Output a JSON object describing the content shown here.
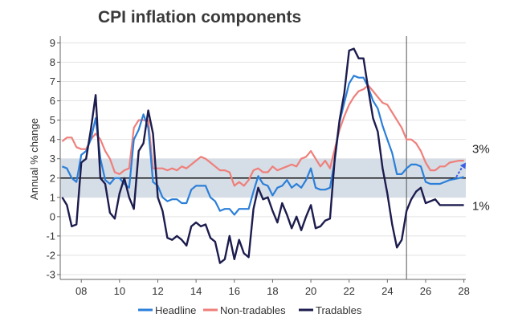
{
  "chart_data": {
    "type": "line",
    "title": "CPI inflation components",
    "ylabel": "Annual % change",
    "xlabel": "",
    "xlim": [
      2006.9,
      2028.1
    ],
    "ylim": [
      -3.25,
      9.35
    ],
    "x_ticks": [
      2008,
      2010,
      2012,
      2014,
      2016,
      2018,
      2020,
      2022,
      2024,
      2026,
      2028
    ],
    "x_tick_labels": [
      "08",
      "10",
      "12",
      "14",
      "16",
      "18",
      "20",
      "22",
      "24",
      "26",
      "28"
    ],
    "y_ticks": [
      -3,
      -2,
      -1,
      0,
      1,
      2,
      3,
      4,
      5,
      6,
      7,
      8,
      9
    ],
    "target_band": [
      1,
      3
    ],
    "target_line": 2,
    "forecast_start": 2025.0,
    "annotations": [
      {
        "text": "3%",
        "x": 2028.1,
        "y": 3.5
      },
      {
        "text": "1%",
        "x": 2028.1,
        "y": 0.55
      }
    ],
    "forecast_arrow": {
      "from": [
        2027.6,
        2.05
      ],
      "to": [
        2028.1,
        2.8
      ]
    },
    "colors": {
      "headline": "#2b7fd9",
      "non_tradables": "#ef7f7a",
      "tradables": "#1c1c4e",
      "band": "#d5dde6",
      "arrow": "#3a5fe0"
    },
    "series": [
      {
        "name": "Headline",
        "x": [
          2007.0,
          2007.25,
          2007.5,
          2007.75,
          2008.0,
          2008.25,
          2008.5,
          2008.75,
          2009.0,
          2009.25,
          2009.5,
          2009.75,
          2010.0,
          2010.25,
          2010.5,
          2010.75,
          2011.0,
          2011.25,
          2011.5,
          2011.75,
          2012.0,
          2012.25,
          2012.5,
          2012.75,
          2013.0,
          2013.25,
          2013.5,
          2013.75,
          2014.0,
          2014.25,
          2014.5,
          2014.75,
          2015.0,
          2015.25,
          2015.5,
          2015.75,
          2016.0,
          2016.25,
          2016.5,
          2016.75,
          2017.0,
          2017.25,
          2017.5,
          2017.75,
          2018.0,
          2018.25,
          2018.5,
          2018.75,
          2019.0,
          2019.25,
          2019.5,
          2019.75,
          2020.0,
          2020.25,
          2020.5,
          2020.75,
          2021.0,
          2021.25,
          2021.5,
          2021.75,
          2022.0,
          2022.25,
          2022.5,
          2022.75,
          2023.0,
          2023.25,
          2023.5,
          2023.75,
          2024.0,
          2024.25,
          2024.5,
          2024.75,
          2025.0,
          2025.25,
          2025.5,
          2025.75,
          2026.0,
          2026.25,
          2026.5,
          2026.75,
          2027.0,
          2027.25,
          2027.5,
          2027.75,
          2028.0
        ],
        "values": [
          2.6,
          2.5,
          2.0,
          1.8,
          3.2,
          3.4,
          4.0,
          5.1,
          3.0,
          1.9,
          1.7,
          2.0,
          2.0,
          1.7,
          1.5,
          4.0,
          4.5,
          5.3,
          4.6,
          1.8,
          1.6,
          1.0,
          0.8,
          0.9,
          0.9,
          0.7,
          0.7,
          1.4,
          1.6,
          1.6,
          1.6,
          1.0,
          0.8,
          0.3,
          0.4,
          0.4,
          0.1,
          0.4,
          0.4,
          0.4,
          1.3,
          2.1,
          1.7,
          1.6,
          1.1,
          1.5,
          1.6,
          1.9,
          1.5,
          1.7,
          1.5,
          1.9,
          2.5,
          1.5,
          1.4,
          1.4,
          1.5,
          2.9,
          4.9,
          5.9,
          6.9,
          7.3,
          7.2,
          7.2,
          6.7,
          6.0,
          5.6,
          4.7,
          4.0,
          3.3,
          2.2,
          2.2,
          2.5,
          2.7,
          2.7,
          2.6,
          1.8,
          1.7,
          1.7,
          1.7,
          1.8,
          1.9,
          1.95,
          2.0,
          2.05
        ]
      },
      {
        "name": "Non-tradables",
        "x": [
          2007.0,
          2007.25,
          2007.5,
          2007.75,
          2008.0,
          2008.25,
          2008.5,
          2008.75,
          2009.0,
          2009.25,
          2009.5,
          2009.75,
          2010.0,
          2010.25,
          2010.5,
          2010.75,
          2011.0,
          2011.25,
          2011.5,
          2011.75,
          2012.0,
          2012.25,
          2012.5,
          2012.75,
          2013.0,
          2013.25,
          2013.5,
          2013.75,
          2014.0,
          2014.25,
          2014.5,
          2014.75,
          2015.0,
          2015.25,
          2015.5,
          2015.75,
          2016.0,
          2016.25,
          2016.5,
          2016.75,
          2017.0,
          2017.25,
          2017.5,
          2017.75,
          2018.0,
          2018.25,
          2018.5,
          2018.75,
          2019.0,
          2019.25,
          2019.5,
          2019.75,
          2020.0,
          2020.25,
          2020.5,
          2020.75,
          2021.0,
          2021.25,
          2021.5,
          2021.75,
          2022.0,
          2022.25,
          2022.5,
          2022.75,
          2023.0,
          2023.25,
          2023.5,
          2023.75,
          2024.0,
          2024.25,
          2024.5,
          2024.75,
          2025.0,
          2025.25,
          2025.5,
          2025.75,
          2026.0,
          2026.25,
          2026.5,
          2026.75,
          2027.0,
          2027.25,
          2027.5,
          2027.75,
          2028.0
        ],
        "values": [
          3.9,
          4.1,
          4.1,
          3.6,
          3.5,
          3.5,
          4.0,
          4.3,
          4.0,
          3.4,
          3.0,
          2.3,
          2.2,
          2.4,
          2.5,
          4.6,
          5.0,
          5.0,
          5.0,
          2.5,
          2.5,
          2.5,
          2.4,
          2.5,
          2.4,
          2.6,
          2.5,
          2.7,
          2.9,
          3.1,
          3.0,
          2.8,
          2.6,
          2.4,
          2.4,
          2.3,
          1.6,
          1.8,
          1.6,
          1.9,
          2.4,
          2.5,
          2.3,
          2.3,
          2.6,
          2.4,
          2.5,
          2.6,
          2.7,
          2.6,
          3.0,
          3.1,
          3.4,
          3.0,
          2.6,
          2.9,
          2.5,
          3.5,
          4.5,
          5.2,
          5.8,
          6.2,
          6.5,
          6.6,
          6.8,
          6.5,
          6.2,
          5.9,
          5.8,
          5.4,
          5.0,
          4.6,
          4.0,
          4.0,
          3.8,
          3.4,
          2.8,
          2.4,
          2.4,
          2.6,
          2.6,
          2.8,
          2.85,
          2.9,
          2.9
        ]
      },
      {
        "name": "Tradables",
        "x": [
          2007.0,
          2007.25,
          2007.5,
          2007.75,
          2008.0,
          2008.25,
          2008.5,
          2008.75,
          2009.0,
          2009.25,
          2009.5,
          2009.75,
          2010.0,
          2010.25,
          2010.5,
          2010.75,
          2011.0,
          2011.25,
          2011.5,
          2011.75,
          2012.0,
          2012.25,
          2012.5,
          2012.75,
          2013.0,
          2013.25,
          2013.5,
          2013.75,
          2014.0,
          2014.25,
          2014.5,
          2014.75,
          2015.0,
          2015.25,
          2015.5,
          2015.75,
          2016.0,
          2016.25,
          2016.5,
          2016.75,
          2017.0,
          2017.25,
          2017.5,
          2017.75,
          2018.0,
          2018.25,
          2018.5,
          2018.75,
          2019.0,
          2019.25,
          2019.5,
          2019.75,
          2020.0,
          2020.25,
          2020.5,
          2020.75,
          2021.0,
          2021.25,
          2021.5,
          2021.75,
          2022.0,
          2022.25,
          2022.5,
          2022.75,
          2023.0,
          2023.25,
          2023.5,
          2023.75,
          2024.0,
          2024.25,
          2024.5,
          2024.75,
          2025.0,
          2025.25,
          2025.5,
          2025.75,
          2026.0,
          2026.25,
          2026.5,
          2026.75,
          2027.0,
          2027.25,
          2027.5,
          2027.75,
          2028.0
        ],
        "values": [
          1.0,
          0.6,
          -0.5,
          -0.4,
          2.8,
          3.0,
          4.5,
          6.3,
          2.0,
          1.7,
          0.2,
          -0.1,
          1.2,
          2.0,
          1.0,
          0.4,
          3.4,
          3.8,
          5.5,
          4.3,
          1.0,
          0.3,
          -1.1,
          -1.2,
          -1.0,
          -1.2,
          -1.5,
          -0.5,
          -0.3,
          -0.5,
          -0.4,
          -1.1,
          -1.3,
          -2.4,
          -2.2,
          -1.0,
          -2.2,
          -1.2,
          -1.9,
          -2.1,
          0.4,
          1.5,
          0.9,
          1.0,
          0.3,
          -0.3,
          0.7,
          0.1,
          -0.6,
          0.0,
          -0.7,
          0.0,
          0.6,
          -0.6,
          -0.5,
          -0.2,
          -0.1,
          3.0,
          5.0,
          6.4,
          8.6,
          8.7,
          8.2,
          8.2,
          6.6,
          5.1,
          4.4,
          2.5,
          1.2,
          -0.4,
          -1.6,
          -1.2,
          0.3,
          0.9,
          1.3,
          1.5,
          0.7,
          0.8,
          0.9,
          0.6,
          0.6,
          0.6,
          0.6,
          0.6,
          0.6
        ]
      }
    ]
  }
}
